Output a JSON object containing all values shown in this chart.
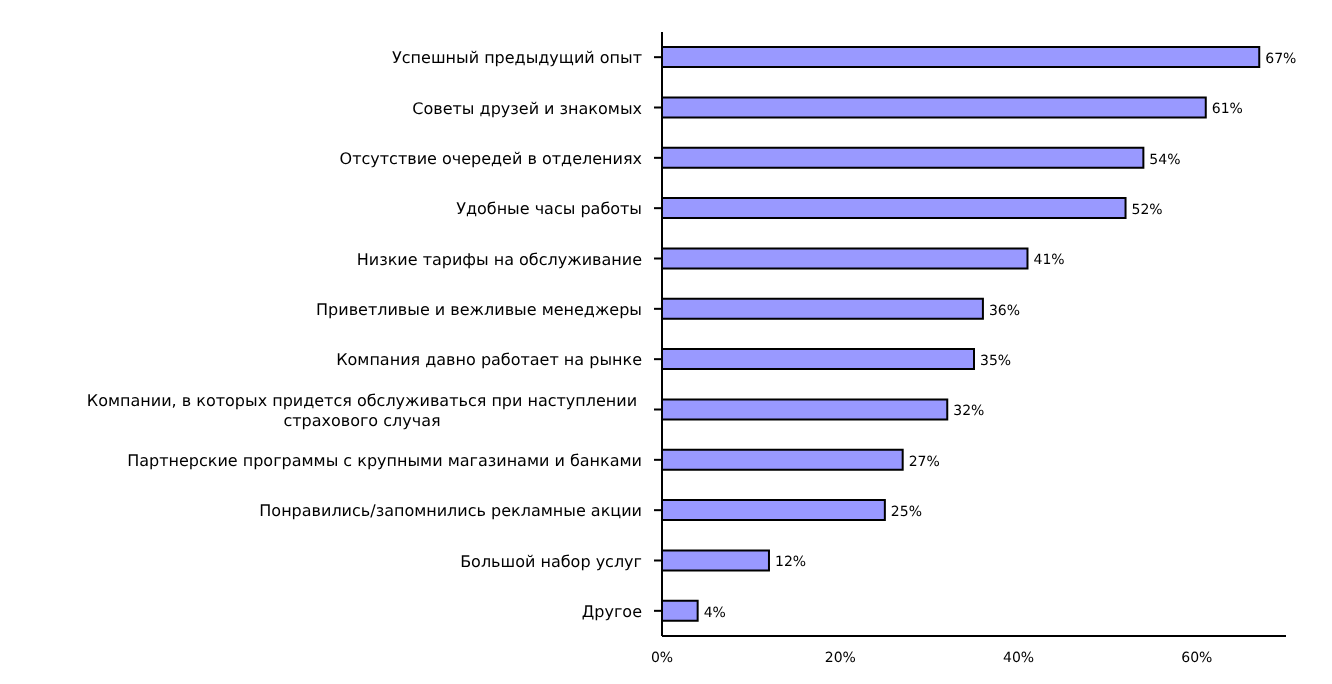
{
  "chart_data": {
    "type": "bar",
    "orientation": "horizontal",
    "categories": [
      "Успешный предыдущий опыт",
      "Советы друзей и знакомых",
      "Отсутствие очередей в отделениях",
      "Удобные часы работы",
      "Низкие тарифы на обслуживание",
      "Приветливые и вежливые менеджеры",
      "Компания давно работает на рынке",
      "Компании, в которых придется обслуживаться при наступлении страхового случая",
      "Партнерские программы с крупными магазинами и банками",
      "Понравились/запомнились рекламные акции",
      "Большой набор услуг",
      "Другое"
    ],
    "values": [
      67,
      61,
      54,
      52,
      41,
      36,
      35,
      32,
      27,
      25,
      12,
      4
    ],
    "value_labels": [
      "67%",
      "61%",
      "54%",
      "52%",
      "41%",
      "36%",
      "35%",
      "32%",
      "27%",
      "25%",
      "12%",
      "4%"
    ],
    "color": "#9999ff",
    "xlim": [
      0,
      70
    ],
    "xticks": [
      {
        "value": 0,
        "label": "0%"
      },
      {
        "value": 20,
        "label": "20%"
      },
      {
        "value": 40,
        "label": "40%"
      },
      {
        "value": 60,
        "label": "60%"
      }
    ],
    "grid": false
  }
}
